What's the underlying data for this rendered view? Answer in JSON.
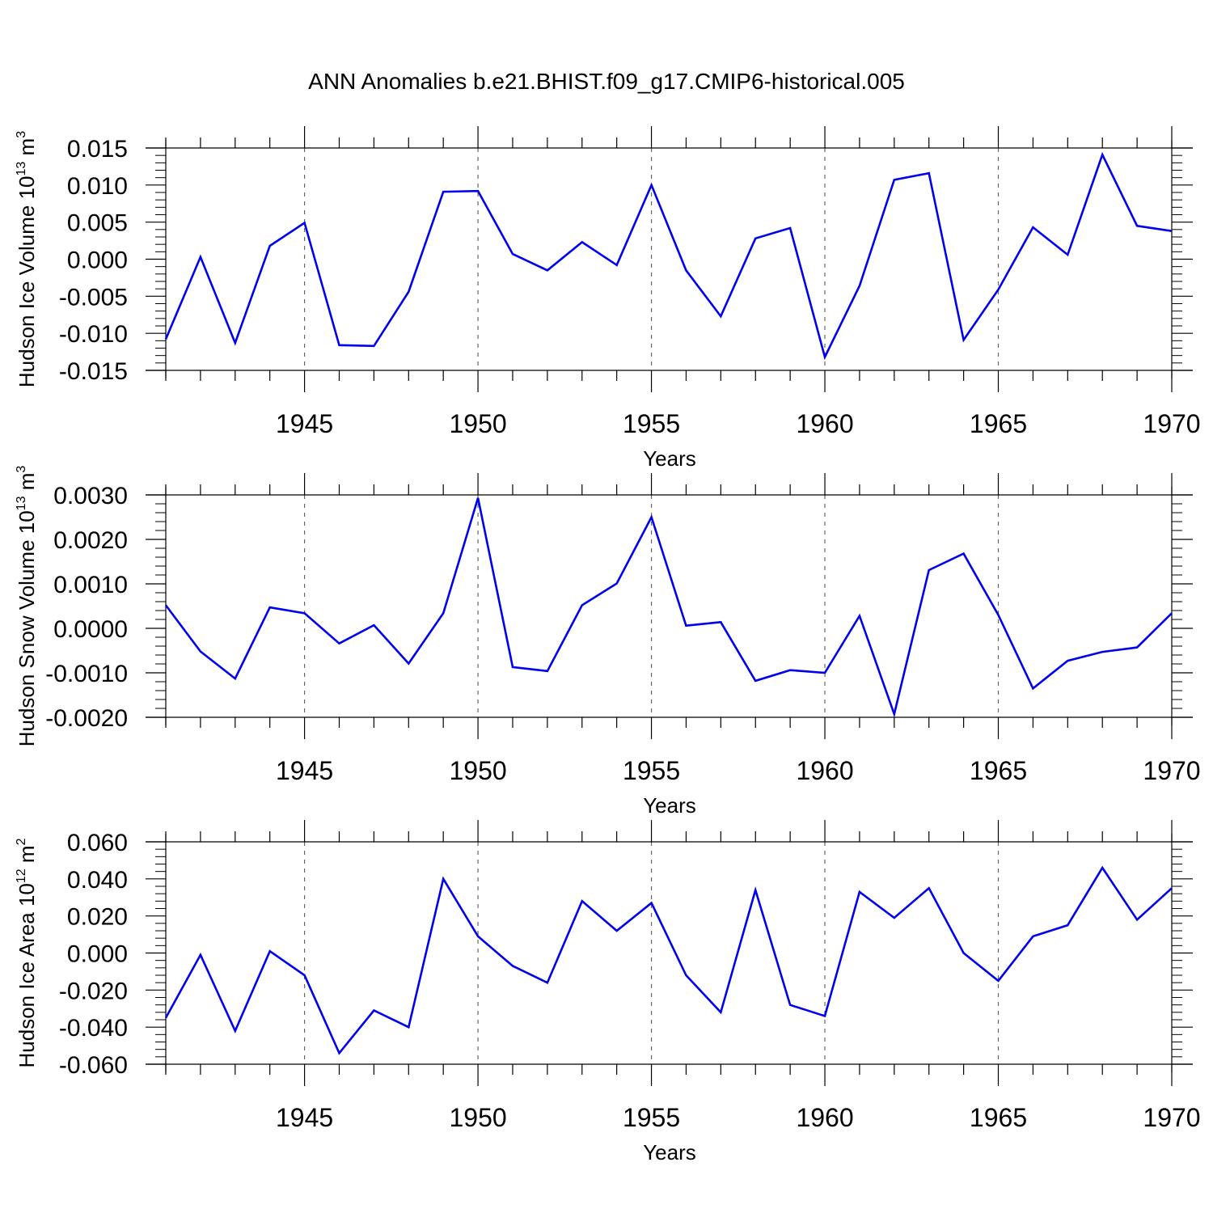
{
  "title": "ANN Anomalies b.e21.BHIST.f09_g17.CMIP6-historical.005",
  "colors": {
    "line": "#0000ee",
    "axis": "#000000",
    "grid": "#666666"
  },
  "chart_data": [
    {
      "type": "line",
      "xlabel": "Years",
      "ylabel_parts": {
        "main": "Hudson Ice Volume 10",
        "exp": "13",
        "unit": " m",
        "unit_exp": "3"
      },
      "xlim": [
        1941,
        1970
      ],
      "ylim": [
        -0.015,
        0.015
      ],
      "x_ticks": [
        1945,
        1950,
        1955,
        1960,
        1965,
        1970
      ],
      "y_ticks": [
        -0.015,
        -0.01,
        -0.005,
        0.0,
        0.005,
        0.01,
        0.015
      ],
      "y_tick_labels": [
        "-0.015",
        "-0.010",
        "-0.005",
        "0.000",
        "0.005",
        "0.010",
        "0.015"
      ],
      "grid": "dashed vertical at major x ticks",
      "x": [
        1941,
        1942,
        1943,
        1944,
        1945,
        1946,
        1947,
        1948,
        1949,
        1950,
        1951,
        1952,
        1953,
        1954,
        1955,
        1956,
        1957,
        1958,
        1959,
        1960,
        1961,
        1962,
        1963,
        1964,
        1965,
        1966,
        1967,
        1968,
        1969,
        1970
      ],
      "values": [
        -0.0108,
        0.0003,
        -0.0113,
        0.0018,
        0.0049,
        -0.0116,
        -0.0117,
        -0.0044,
        0.0091,
        0.0092,
        0.0007,
        -0.0015,
        0.0023,
        -0.0008,
        0.01,
        -0.0015,
        -0.0077,
        0.0028,
        0.0042,
        -0.0132,
        -0.0036,
        0.0107,
        0.0116,
        -0.0109,
        -0.0041,
        0.0043,
        0.0006,
        0.0141,
        0.0045,
        0.0038
      ]
    },
    {
      "type": "line",
      "xlabel": "Years",
      "ylabel_parts": {
        "main": "Hudson Snow Volume 10",
        "exp": "13",
        "unit": " m",
        "unit_exp": "3"
      },
      "xlim": [
        1941,
        1970
      ],
      "ylim": [
        -0.002,
        0.003
      ],
      "x_ticks": [
        1945,
        1950,
        1955,
        1960,
        1965,
        1970
      ],
      "y_ticks": [
        -0.002,
        -0.001,
        0.0,
        0.001,
        0.002,
        0.003
      ],
      "y_tick_labels": [
        "-0.0020",
        "-0.0010",
        "0.0000",
        "0.0010",
        "0.0020",
        "0.0030"
      ],
      "grid": "dashed vertical at major x ticks",
      "x": [
        1941,
        1942,
        1943,
        1944,
        1945,
        1946,
        1947,
        1948,
        1949,
        1950,
        1951,
        1952,
        1953,
        1954,
        1955,
        1956,
        1957,
        1958,
        1959,
        1960,
        1961,
        1962,
        1963,
        1964,
        1965,
        1966,
        1967,
        1968,
        1969,
        1970
      ],
      "values": [
        0.00052,
        -0.00052,
        -0.00113,
        0.00047,
        0.00034,
        -0.00034,
        7e-05,
        -0.00079,
        0.00034,
        0.00293,
        -0.00087,
        -0.00096,
        0.00052,
        0.00101,
        0.0025,
        6e-05,
        0.00014,
        -0.00118,
        -0.00094,
        -0.001,
        0.00028,
        -0.00193,
        0.00131,
        0.00168,
        0.0003,
        -0.00135,
        -0.00073,
        -0.00053,
        -0.00043,
        0.00034
      ]
    },
    {
      "type": "line",
      "xlabel": "Years",
      "ylabel_parts": {
        "main": "Hudson Ice Area 10",
        "exp": "12",
        "unit": " m",
        "unit_exp": "2"
      },
      "xlim": [
        1941,
        1970
      ],
      "ylim": [
        -0.06,
        0.06
      ],
      "x_ticks": [
        1945,
        1950,
        1955,
        1960,
        1965,
        1970
      ],
      "y_ticks": [
        -0.06,
        -0.04,
        -0.02,
        0.0,
        0.02,
        0.04,
        0.06
      ],
      "y_tick_labels": [
        "-0.060",
        "-0.040",
        "-0.020",
        "0.000",
        "0.020",
        "0.040",
        "0.060"
      ],
      "grid": "dashed vertical at major x ticks",
      "x": [
        1941,
        1942,
        1943,
        1944,
        1945,
        1946,
        1947,
        1948,
        1949,
        1950,
        1951,
        1952,
        1953,
        1954,
        1955,
        1956,
        1957,
        1958,
        1959,
        1960,
        1961,
        1962,
        1963,
        1964,
        1965,
        1966,
        1967,
        1968,
        1969,
        1970
      ],
      "values": [
        -0.035,
        -0.001,
        -0.042,
        0.001,
        -0.012,
        -0.054,
        -0.031,
        -0.04,
        0.04,
        0.009,
        -0.007,
        -0.016,
        0.028,
        0.012,
        0.027,
        -0.012,
        -0.032,
        0.034,
        -0.028,
        -0.034,
        0.033,
        0.019,
        0.035,
        0.0,
        -0.015,
        0.009,
        0.015,
        0.046,
        0.018,
        0.035
      ]
    }
  ]
}
